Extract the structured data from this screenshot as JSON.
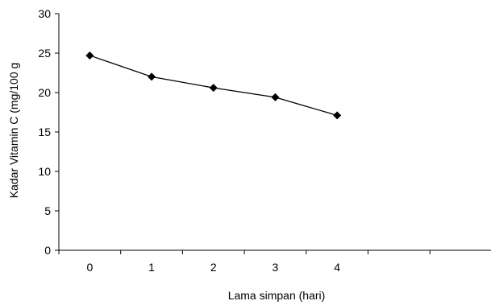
{
  "chart_data": {
    "type": "line",
    "title": "",
    "xlabel": "Lama simpan (hari)",
    "ylabel": "Kadar Vitamin C (mg/100 g",
    "x_tick_labels": [
      "0",
      "1",
      "2",
      "3",
      "4"
    ],
    "y_tick_labels": [
      "0",
      "5",
      "10",
      "15",
      "20",
      "25",
      "30"
    ],
    "ylim": [
      0,
      30
    ],
    "grid": false,
    "legend": "none",
    "series": [
      {
        "x": [
          0,
          1,
          2,
          3,
          4
        ],
        "values": [
          24.7,
          22.0,
          20.6,
          19.4,
          17.1
        ]
      }
    ],
    "line_color": "#000000",
    "marker": "diamond"
  }
}
